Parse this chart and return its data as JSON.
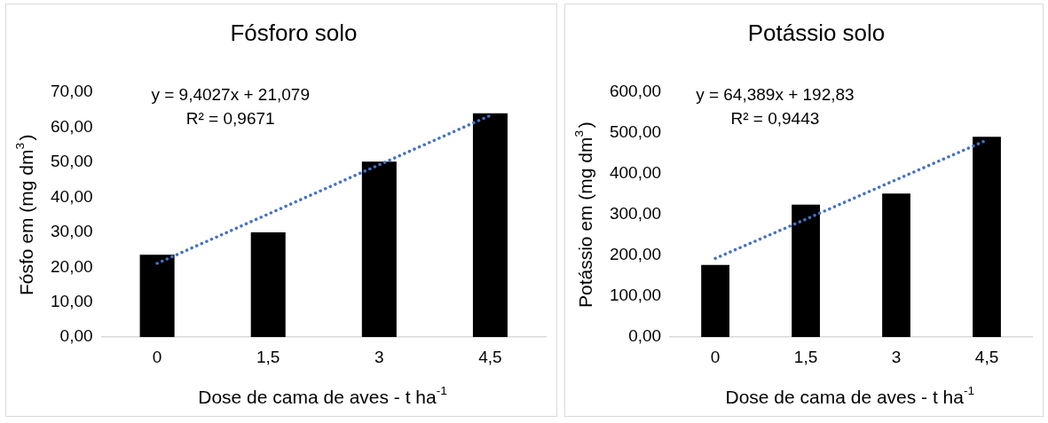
{
  "chart_data": [
    {
      "type": "bar",
      "title": "Fósforo solo",
      "xlabel": "Dose de cama de aves - t ha$^{-1}$",
      "ylabel": "Fósfo em (mg dm$^{3}$)",
      "categories": [
        "0",
        "1,5",
        "3",
        "4,5"
      ],
      "series": [
        {
          "color": "#000000",
          "values": [
            23.6,
            30.0,
            50.2,
            64.0
          ]
        },
        {
          "type": "line",
          "color": "#4472c4",
          "line_style": "dotted",
          "marker": "none",
          "values": [
            21.1,
            35.2,
            49.3,
            63.4
          ]
        }
      ],
      "ylim": [
        0,
        70
      ],
      "yticks": [
        {
          "value": 0,
          "label": "0,00"
        },
        {
          "value": 10,
          "label": "10,00"
        },
        {
          "value": 20,
          "label": "20,00"
        },
        {
          "value": 30,
          "label": "30,00"
        },
        {
          "value": 40,
          "label": "40,00"
        },
        {
          "value": 50,
          "label": "50,00"
        },
        {
          "value": 60,
          "label": "60,00"
        },
        {
          "value": 70,
          "label": "70,00"
        }
      ],
      "annotations": [
        "y = 9,4027x + 21,079",
        "R² = 0,9671"
      ],
      "grid": false,
      "legend": false
    },
    {
      "type": "bar",
      "title": "Potássio solo",
      "xlabel": "Dose de cama de aves - t ha$^{-1}$",
      "ylabel": "Potássio em (mg dm$^{3}$)",
      "categories": [
        "0",
        "1,5",
        "3",
        "4,5"
      ],
      "series": [
        {
          "color": "#000000",
          "values": [
            177,
            325,
            352,
            491
          ]
        },
        {
          "type": "line",
          "color": "#4472c4",
          "line_style": "dotted",
          "marker": "none",
          "values": [
            193,
            289,
            386,
            483
          ]
        }
      ],
      "ylim": [
        0,
        600
      ],
      "yticks": [
        {
          "value": 0,
          "label": "0,00"
        },
        {
          "value": 100,
          "label": "100,00"
        },
        {
          "value": 200,
          "label": "200,00"
        },
        {
          "value": 300,
          "label": "300,00"
        },
        {
          "value": 400,
          "label": "400,00"
        },
        {
          "value": 500,
          "label": "500,00"
        },
        {
          "value": 600,
          "label": "600,00"
        }
      ],
      "annotations": [
        "y = 64,389x + 192,83",
        "R² = 0,9443"
      ],
      "grid": false,
      "legend": false
    }
  ]
}
